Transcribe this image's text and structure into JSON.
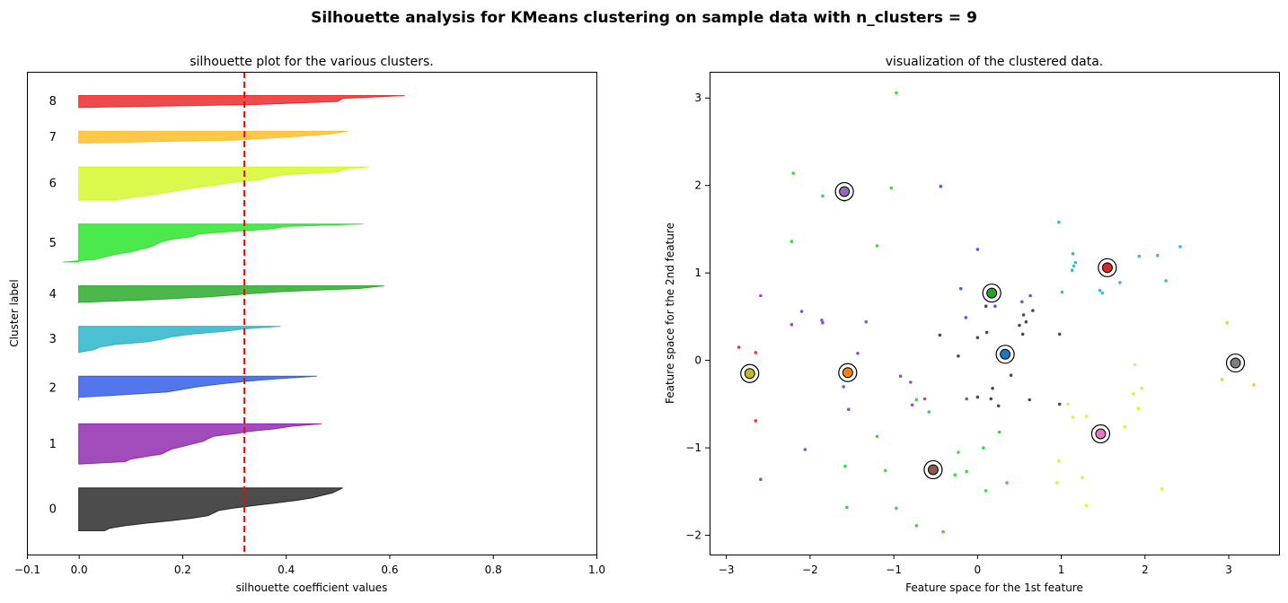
{
  "suptitle": "Silhouette analysis for KMeans clustering on sample data with n_clusters = 9",
  "chart_data": [
    {
      "type": "area",
      "title": "silhouette plot for the various clusters.",
      "xlabel": "silhouette coefficient values",
      "ylabel": "Cluster label",
      "xlim": [
        -0.1,
        1.0
      ],
      "xticks": [
        -0.1,
        0.0,
        0.2,
        0.4,
        0.6,
        0.8,
        1.0
      ],
      "xtick_labels": [
        "−0.1",
        "0.0",
        "0.2",
        "0.4",
        "0.6",
        "0.8",
        "1.0"
      ],
      "yticks": false,
      "grid": false,
      "average_silhouette": 0.32,
      "average_line_color": "#ff0000",
      "clusters": [
        {
          "label": "0",
          "color": "#000000",
          "values": [
            0.51,
            0.5,
            0.49,
            0.47,
            0.45,
            0.42,
            0.38,
            0.34,
            0.3,
            0.27,
            0.26,
            0.25,
            0.22,
            0.18,
            0.13,
            0.09,
            0.06,
            0.05
          ]
        },
        {
          "label": "1",
          "color": "#7a00a0",
          "values": [
            0.47,
            0.41,
            0.38,
            0.33,
            0.3,
            0.26,
            0.25,
            0.24,
            0.22,
            0.2,
            0.18,
            0.17,
            0.16,
            0.13,
            0.1,
            0.09,
            0.0
          ]
        },
        {
          "label": "2",
          "color": "#0a3ce6",
          "values": [
            0.46,
            0.38,
            0.32,
            0.27,
            0.23,
            0.2,
            0.17,
            0.09,
            0.0,
            0.0
          ]
        },
        {
          "label": "3",
          "color": "#00a5c0",
          "values": [
            0.39,
            0.32,
            0.28,
            0.22,
            0.18,
            0.16,
            0.13,
            0.07,
            0.04,
            0.03,
            0.0
          ]
        },
        {
          "label": "4",
          "color": "#009a00",
          "values": [
            0.59,
            0.54,
            0.4,
            0.32,
            0.25,
            0.14,
            0.0
          ]
        },
        {
          "label": "5",
          "color": "#00e000",
          "values": [
            0.55,
            0.4,
            0.37,
            0.29,
            0.23,
            0.22,
            0.18,
            0.16,
            0.15,
            0.14,
            0.12,
            0.1,
            0.07,
            0.05,
            0.03,
            -0.03
          ]
        },
        {
          "label": "6",
          "color": "#ccf700",
          "values": [
            0.56,
            0.51,
            0.5,
            0.4,
            0.37,
            0.35,
            0.3,
            0.27,
            0.23,
            0.2,
            0.17,
            0.14,
            0.1,
            0.07
          ]
        },
        {
          "label": "7",
          "color": "#ffb000",
          "values": [
            0.52,
            0.48,
            0.4,
            0.3,
            0.0
          ]
        },
        {
          "label": "8",
          "color": "#e60000",
          "values": [
            0.63,
            0.51,
            0.5,
            0.35,
            0.0
          ]
        }
      ]
    },
    {
      "type": "scatter",
      "title": "visualization of the clustered data.",
      "xlabel": "Feature space for the 1st feature",
      "ylabel": "Feature space for the 2nd feature",
      "xlim": [
        -3.2,
        3.6
      ],
      "ylim": [
        -2.22,
        3.3
      ],
      "xticks": [
        -3,
        -2,
        -1,
        0,
        1,
        2,
        3
      ],
      "xtick_labels": [
        "−3",
        "−2",
        "−1",
        "0",
        "1",
        "2",
        "3"
      ],
      "yticks": [
        -2,
        -1,
        0,
        1,
        2,
        3
      ],
      "ytick_labels": [
        "−2",
        "−1",
        "0",
        "1",
        "2",
        "3"
      ],
      "grid": false,
      "cluster_colors": [
        "#4d4d4d",
        "#9a4fc0",
        "#4863e6",
        "#33bdd0",
        "#2ca02c",
        "#33e033",
        "#e0f233",
        "#ffc233",
        "#f03333"
      ],
      "center_colors": [
        "#1f77b4",
        "#ff7f0e",
        "#2ca02c",
        "#d62728",
        "#9467bd",
        "#8c564b",
        "#e377c2",
        "#7f7f7f",
        "#bcbd22"
      ],
      "centers": [
        {
          "x": 0.33,
          "y": 0.07
        },
        {
          "x": -1.55,
          "y": -0.14
        },
        {
          "x": 0.17,
          "y": 0.77
        },
        {
          "x": 1.55,
          "y": 1.06
        },
        {
          "x": -1.59,
          "y": 1.93
        },
        {
          "x": -0.53,
          "y": -1.25
        },
        {
          "x": 1.47,
          "y": -0.84
        },
        {
          "x": 3.08,
          "y": -0.03
        },
        {
          "x": -2.72,
          "y": -0.15
        }
      ],
      "points": [
        {
          "x": -0.97,
          "y": 3.06,
          "c": 5
        },
        {
          "x": -2.2,
          "y": 2.14,
          "c": 5
        },
        {
          "x": -1.85,
          "y": 1.88,
          "c": 5
        },
        {
          "x": -1.03,
          "y": 1.97,
          "c": 5
        },
        {
          "x": -1.59,
          "y": 1.83,
          "c": 5
        },
        {
          "x": -2.22,
          "y": 1.36,
          "c": 5
        },
        {
          "x": -1.2,
          "y": 1.31,
          "c": 5
        },
        {
          "x": -0.44,
          "y": 1.99,
          "c": 2
        },
        {
          "x": 0.0,
          "y": 1.27,
          "c": 2
        },
        {
          "x": 0.97,
          "y": 1.58,
          "c": 3
        },
        {
          "x": 1.15,
          "y": 1.08,
          "c": 3
        },
        {
          "x": 1.17,
          "y": 1.12,
          "c": 3
        },
        {
          "x": 2.15,
          "y": 1.2,
          "c": 3
        },
        {
          "x": 2.42,
          "y": 1.3,
          "c": 3
        },
        {
          "x": 1.93,
          "y": 1.19,
          "c": 3
        },
        {
          "x": 1.13,
          "y": 1.03,
          "c": 3
        },
        {
          "x": 1.7,
          "y": 0.89,
          "c": 3
        },
        {
          "x": 1.46,
          "y": 0.8,
          "c": 3
        },
        {
          "x": 1.49,
          "y": 0.77,
          "c": 3
        },
        {
          "x": 2.25,
          "y": 0.91,
          "c": 3
        },
        {
          "x": 1.01,
          "y": 0.78,
          "c": 3
        },
        {
          "x": 1.14,
          "y": 1.22,
          "c": 3
        },
        {
          "x": -0.2,
          "y": 0.82,
          "c": 2
        },
        {
          "x": -0.14,
          "y": 0.49,
          "c": 2
        },
        {
          "x": 0.53,
          "y": 0.67,
          "c": 2
        },
        {
          "x": 0.63,
          "y": 0.74,
          "c": 2
        },
        {
          "x": 0.21,
          "y": 0.62,
          "c": 2
        },
        {
          "x": 0.1,
          "y": 0.62,
          "c": 0
        },
        {
          "x": 0.66,
          "y": 0.57,
          "c": 0
        },
        {
          "x": 0.55,
          "y": 0.52,
          "c": 0
        },
        {
          "x": 0.58,
          "y": 0.44,
          "c": 0
        },
        {
          "x": 0.5,
          "y": 0.4,
          "c": 0
        },
        {
          "x": 0.54,
          "y": 0.3,
          "c": 0
        },
        {
          "x": 0.98,
          "y": 0.3,
          "c": 0
        },
        {
          "x": 0.11,
          "y": 0.32,
          "c": 0
        },
        {
          "x": 0.0,
          "y": 0.26,
          "c": 0
        },
        {
          "x": -0.45,
          "y": 0.29,
          "c": 0
        },
        {
          "x": -0.23,
          "y": 0.05,
          "c": 0
        },
        {
          "x": 0.4,
          "y": -0.17,
          "c": 0
        },
        {
          "x": 0.18,
          "y": -0.32,
          "c": 0
        },
        {
          "x": 0.0,
          "y": -0.42,
          "c": 0
        },
        {
          "x": 0.16,
          "y": -0.44,
          "c": 0
        },
        {
          "x": 0.25,
          "y": -0.52,
          "c": 0
        },
        {
          "x": 0.62,
          "y": -0.45,
          "c": 0
        },
        {
          "x": 0.98,
          "y": -0.5,
          "c": 0
        },
        {
          "x": -0.13,
          "y": -0.44,
          "c": 2
        },
        {
          "x": -2.59,
          "y": 0.74,
          "c": 1
        },
        {
          "x": -2.1,
          "y": 0.56,
          "c": 1
        },
        {
          "x": -1.86,
          "y": 0.46,
          "c": 1
        },
        {
          "x": -1.85,
          "y": 0.43,
          "c": 1
        },
        {
          "x": -2.22,
          "y": 0.41,
          "c": 1
        },
        {
          "x": -1.33,
          "y": 0.44,
          "c": 1
        },
        {
          "x": -1.43,
          "y": 0.08,
          "c": 1
        },
        {
          "x": -0.92,
          "y": -0.18,
          "c": 1
        },
        {
          "x": -0.8,
          "y": -0.25,
          "c": 1
        },
        {
          "x": -1.6,
          "y": -0.3,
          "c": 1
        },
        {
          "x": -1.54,
          "y": -0.56,
          "c": 1
        },
        {
          "x": -2.06,
          "y": -1.02,
          "c": 1
        },
        {
          "x": -2.59,
          "y": -1.36,
          "c": 1
        },
        {
          "x": -0.63,
          "y": -0.44,
          "c": 1
        },
        {
          "x": -0.78,
          "y": -0.51,
          "c": 1
        },
        {
          "x": -2.85,
          "y": 0.15,
          "c": 8
        },
        {
          "x": -2.65,
          "y": 0.09,
          "c": 8
        },
        {
          "x": -2.65,
          "y": -0.69,
          "c": 8
        },
        {
          "x": -0.73,
          "y": -0.45,
          "c": 5
        },
        {
          "x": -0.58,
          "y": -0.59,
          "c": 5
        },
        {
          "x": 0.26,
          "y": -0.82,
          "c": 5
        },
        {
          "x": -1.2,
          "y": -0.87,
          "c": 5
        },
        {
          "x": -0.23,
          "y": -1.05,
          "c": 5
        },
        {
          "x": 0.07,
          "y": -1.0,
          "c": 5
        },
        {
          "x": -1.1,
          "y": -1.26,
          "c": 5
        },
        {
          "x": -1.58,
          "y": -1.21,
          "c": 5
        },
        {
          "x": -0.13,
          "y": -1.27,
          "c": 5
        },
        {
          "x": -0.27,
          "y": -1.31,
          "c": 5
        },
        {
          "x": -0.59,
          "y": -1.32,
          "c": 5
        },
        {
          "x": 0.1,
          "y": -1.49,
          "c": 5
        },
        {
          "x": 0.35,
          "y": -1.4,
          "c": 5
        },
        {
          "x": -1.56,
          "y": -1.68,
          "c": 5
        },
        {
          "x": -0.97,
          "y": -1.69,
          "c": 5
        },
        {
          "x": -0.73,
          "y": -1.89,
          "c": 5
        },
        {
          "x": -0.41,
          "y": -1.96,
          "c": 5
        },
        {
          "x": 1.88,
          "y": -0.05,
          "c": 6
        },
        {
          "x": 1.96,
          "y": -0.32,
          "c": 6
        },
        {
          "x": 1.86,
          "y": -0.38,
          "c": 6
        },
        {
          "x": 1.08,
          "y": -0.5,
          "c": 6
        },
        {
          "x": 1.92,
          "y": -0.55,
          "c": 6
        },
        {
          "x": 1.14,
          "y": -0.65,
          "c": 6
        },
        {
          "x": 1.3,
          "y": -0.64,
          "c": 6
        },
        {
          "x": 1.76,
          "y": -0.76,
          "c": 6
        },
        {
          "x": 0.97,
          "y": -1.15,
          "c": 6
        },
        {
          "x": 1.25,
          "y": -1.34,
          "c": 6
        },
        {
          "x": 0.95,
          "y": -1.4,
          "c": 6
        },
        {
          "x": 2.2,
          "y": -1.47,
          "c": 6
        },
        {
          "x": 1.3,
          "y": -1.66,
          "c": 6
        },
        {
          "x": 2.98,
          "y": 0.43,
          "c": 7
        },
        {
          "x": 2.92,
          "y": -0.22,
          "c": 7
        },
        {
          "x": 3.3,
          "y": -0.28,
          "c": 7
        }
      ]
    }
  ]
}
